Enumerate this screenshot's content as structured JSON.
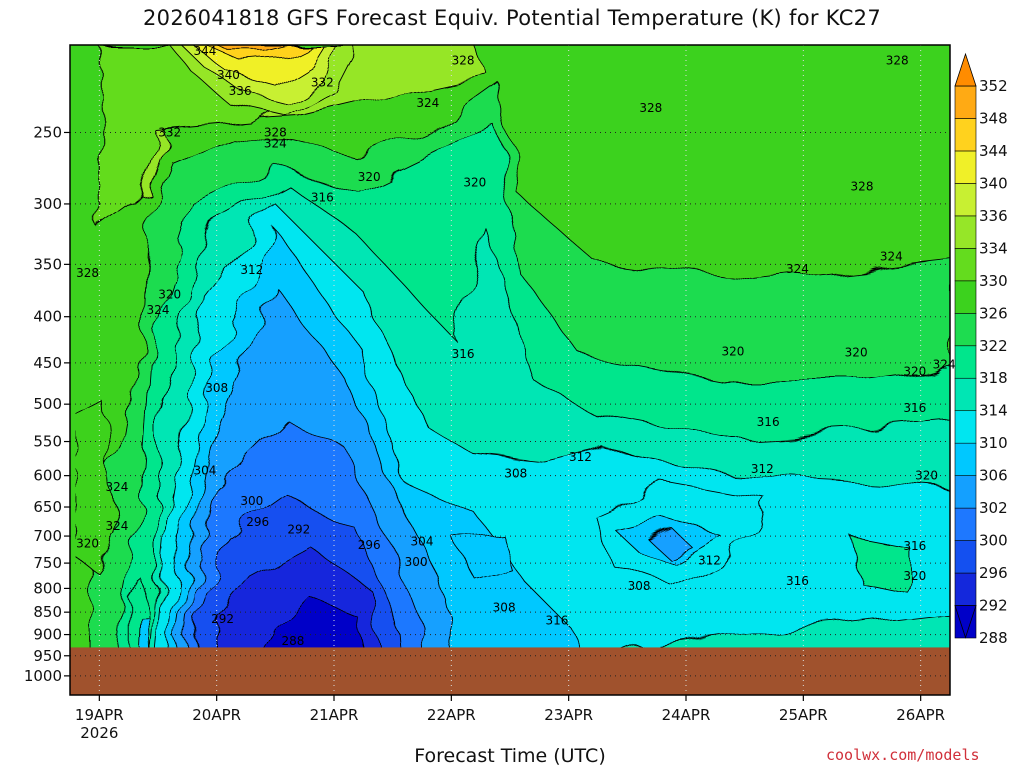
{
  "title": "2026041818 GFS Forecast Equiv. Potential Temperature (K) for KC27",
  "xlabel": "Forecast Time (UTC)",
  "credit": "coolwx.com/models",
  "chart_data": {
    "type": "heatmap",
    "title": "2026041818 GFS Forecast Equiv. Potential Temperature (K) for KC27",
    "xlabel": "Forecast Time (UTC)",
    "ylabel": "",
    "y_scale": "log",
    "y_inverted": true,
    "ylim": [
      1050,
      200
    ],
    "y_ticks": [
      250,
      300,
      350,
      400,
      450,
      500,
      550,
      600,
      650,
      700,
      750,
      800,
      850,
      900,
      950,
      1000
    ],
    "x_ticks": [
      "19APR",
      "20APR",
      "21APR",
      "22APR",
      "23APR",
      "24APR",
      "25APR",
      "26APR"
    ],
    "x_year_label": "2026",
    "xlim": [
      18.75,
      26.25
    ],
    "ground_level_hPa": 930,
    "ground_color": "#a0522d",
    "colorbar": {
      "levels": [
        288,
        292,
        296,
        300,
        302,
        306,
        310,
        314,
        318,
        322,
        326,
        330,
        334,
        336,
        340,
        344,
        348,
        352
      ],
      "colors": [
        "#0000c8",
        "#1428dc",
        "#1450f0",
        "#1e78ff",
        "#14a0ff",
        "#00c8ff",
        "#00e6f0",
        "#00e6b4",
        "#00e68c",
        "#1edc50",
        "#3cd21e",
        "#64dc1e",
        "#96e628",
        "#c8f032",
        "#f0f028",
        "#ffd21e",
        "#ffaa14",
        "#ff8c00"
      ]
    },
    "contour_labels": [
      {
        "value": "344",
        "day": 19.9,
        "p": 203
      },
      {
        "value": "340",
        "day": 20.1,
        "p": 216
      },
      {
        "value": "336",
        "day": 20.2,
        "p": 225
      },
      {
        "value": "332",
        "day": 19.6,
        "p": 250
      },
      {
        "value": "332",
        "day": 20.9,
        "p": 220
      },
      {
        "value": "328",
        "day": 20.5,
        "p": 250
      },
      {
        "value": "324",
        "day": 20.5,
        "p": 257
      },
      {
        "value": "328",
        "day": 22.1,
        "p": 208
      },
      {
        "value": "324",
        "day": 21.8,
        "p": 232
      },
      {
        "value": "320",
        "day": 21.3,
        "p": 280
      },
      {
        "value": "316",
        "day": 20.9,
        "p": 295
      },
      {
        "value": "320",
        "day": 22.2,
        "p": 284
      },
      {
        "value": "328",
        "day": 23.7,
        "p": 235
      },
      {
        "value": "328",
        "day": 25.8,
        "p": 208
      },
      {
        "value": "328",
        "day": 25.5,
        "p": 287
      },
      {
        "value": "324",
        "day": 24.95,
        "p": 354
      },
      {
        "value": "324",
        "day": 25.75,
        "p": 343
      },
      {
        "value": "328",
        "day": 18.9,
        "p": 358
      },
      {
        "value": "320",
        "day": 19.6,
        "p": 378
      },
      {
        "value": "324",
        "day": 19.5,
        "p": 393
      },
      {
        "value": "312",
        "day": 20.3,
        "p": 355
      },
      {
        "value": "316",
        "day": 22.1,
        "p": 440
      },
      {
        "value": "320",
        "day": 24.4,
        "p": 437
      },
      {
        "value": "320",
        "day": 25.45,
        "p": 438
      },
      {
        "value": "320",
        "day": 25.95,
        "p": 460
      },
      {
        "value": "324",
        "day": 26.2,
        "p": 452
      },
      {
        "value": "308",
        "day": 20.0,
        "p": 480
      },
      {
        "value": "316",
        "day": 24.7,
        "p": 523
      },
      {
        "value": "316",
        "day": 25.95,
        "p": 505
      },
      {
        "value": "304",
        "day": 19.9,
        "p": 592
      },
      {
        "value": "300",
        "day": 20.3,
        "p": 640
      },
      {
        "value": "296",
        "day": 20.35,
        "p": 675
      },
      {
        "value": "292",
        "day": 20.7,
        "p": 688
      },
      {
        "value": "296",
        "day": 21.3,
        "p": 716
      },
      {
        "value": "304",
        "day": 21.75,
        "p": 710
      },
      {
        "value": "300",
        "day": 21.7,
        "p": 748
      },
      {
        "value": "308",
        "day": 22.55,
        "p": 597
      },
      {
        "value": "312",
        "day": 23.1,
        "p": 572
      },
      {
        "value": "312",
        "day": 24.65,
        "p": 590
      },
      {
        "value": "320",
        "day": 26.05,
        "p": 600
      },
      {
        "value": "324",
        "day": 19.15,
        "p": 618
      },
      {
        "value": "324",
        "day": 19.15,
        "p": 682
      },
      {
        "value": "320",
        "day": 18.9,
        "p": 713
      },
      {
        "value": "292",
        "day": 20.05,
        "p": 865
      },
      {
        "value": "288",
        "day": 20.65,
        "p": 915
      },
      {
        "value": "308",
        "day": 22.45,
        "p": 840
      },
      {
        "value": "316",
        "day": 22.9,
        "p": 868
      },
      {
        "value": "308",
        "day": 23.6,
        "p": 795
      },
      {
        "value": "312",
        "day": 24.2,
        "p": 745
      },
      {
        "value": "316",
        "day": 24.95,
        "p": 785
      },
      {
        "value": "316",
        "day": 25.95,
        "p": 718
      },
      {
        "value": "320",
        "day": 25.95,
        "p": 775
      }
    ]
  }
}
